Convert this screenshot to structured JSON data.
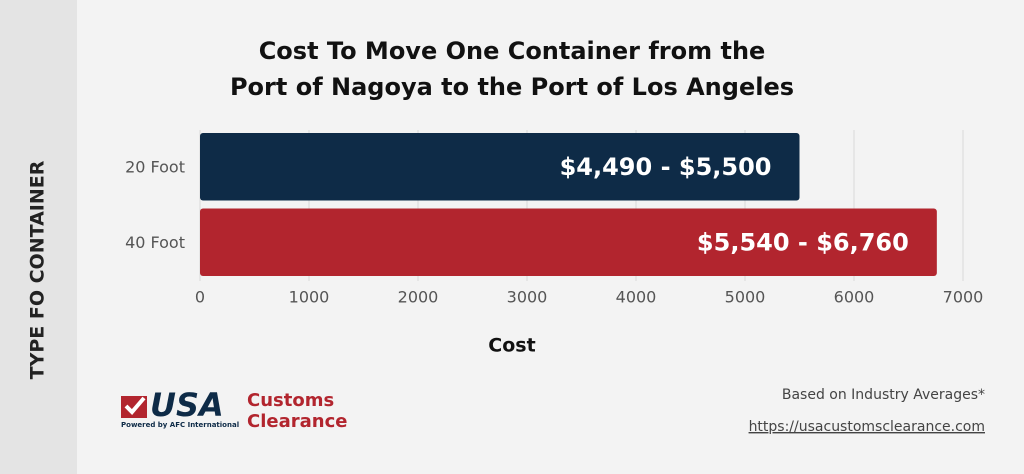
{
  "chart_data": {
    "type": "barh",
    "title": [
      "Cost To Move One Container from the",
      "Port of Nagoya to the Port of Los Angeles"
    ],
    "xlabel": "Cost",
    "ylabel": "TYPE FO CONTAINER",
    "categories": [
      "20 Foot",
      "40 Foot"
    ],
    "values": [
      5500,
      6760
    ],
    "value_labels": [
      "$4,490 - $5,500",
      "$5,540 - $6,760"
    ],
    "colors": [
      "#0e2b47",
      "#b2252e"
    ],
    "xlim": [
      0,
      7000
    ],
    "xticks": [
      0,
      1000,
      2000,
      3000,
      4000,
      5000,
      6000,
      7000
    ],
    "grid": true
  },
  "logo": {
    "main": "USA",
    "line1": "Customs",
    "line2": "Clearance",
    "tagline": "Powered by AFC International"
  },
  "footer": {
    "note": "Based on Industry Averages*",
    "url": "https://usacustomsclearance.com"
  }
}
